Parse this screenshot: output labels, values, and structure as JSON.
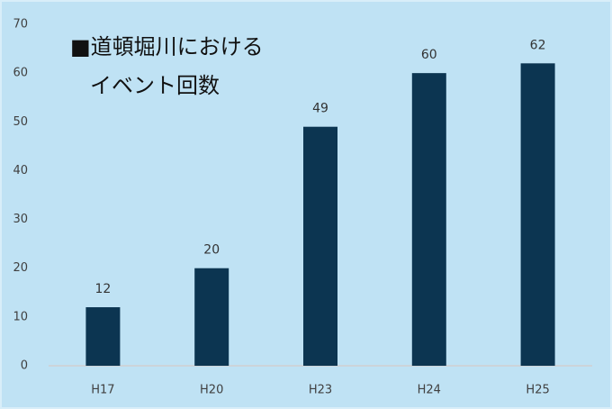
{
  "chart_data": {
    "type": "bar",
    "title": [
      "■道頓堀川における",
      "イベント回数"
    ],
    "categories": [
      "H17",
      "H20",
      "H23",
      "H24",
      "H25"
    ],
    "values": [
      12,
      20,
      49,
      60,
      62
    ],
    "color": "#0c3551",
    "ylim": [
      0,
      70
    ],
    "yticks": [
      0,
      10,
      20,
      30,
      40,
      50,
      60,
      70
    ],
    "grid": false,
    "data_labels": true
  }
}
